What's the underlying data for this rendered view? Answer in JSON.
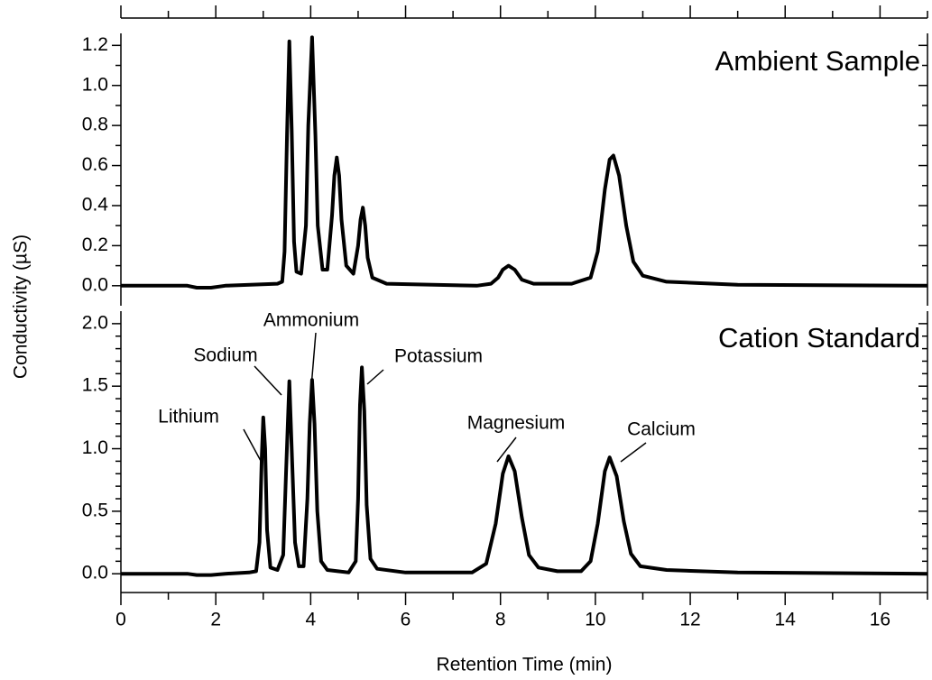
{
  "chart_data": [
    {
      "type": "line",
      "title": "Ambient Sample",
      "ylabel": "Conductivity (µS)",
      "color": "#000000",
      "xlim": [
        0,
        17
      ],
      "xticks": [
        0,
        2,
        4,
        6,
        8,
        10,
        12,
        14,
        16
      ],
      "xminorticks": [
        1,
        3,
        5,
        7,
        9,
        11,
        13,
        15,
        17
      ],
      "ylim": [
        -0.1,
        1.26
      ],
      "yticks": [
        {
          "value": 0,
          "label": "0.0"
        },
        0.2,
        0.4,
        0.6,
        0.8,
        {
          "value": 1,
          "label": "1.0"
        },
        1.2
      ],
      "yminorticks": [
        0.1,
        0.3,
        0.5,
        0.7,
        0.9,
        1.1
      ],
      "x": [
        0,
        1.4,
        1.6,
        1.9,
        2.2,
        3.3,
        3.4,
        3.45,
        3.5,
        3.55,
        3.6,
        3.65,
        3.7,
        3.8,
        3.9,
        3.95,
        4.03,
        4.1,
        4.15,
        4.25,
        4.35,
        4.45,
        4.5,
        4.55,
        4.6,
        4.65,
        4.75,
        4.9,
        5.0,
        5.05,
        5.1,
        5.15,
        5.2,
        5.3,
        5.6,
        7.5,
        7.8,
        7.95,
        8.05,
        8.17,
        8.3,
        8.45,
        8.7,
        9.5,
        9.9,
        10.05,
        10.2,
        10.3,
        10.38,
        10.5,
        10.65,
        10.8,
        11.0,
        11.5,
        13,
        17
      ],
      "values": [
        0,
        0,
        -0.01,
        -0.01,
        0,
        0.01,
        0.02,
        0.17,
        0.75,
        1.22,
        0.78,
        0.22,
        0.07,
        0.06,
        0.3,
        0.8,
        1.24,
        0.75,
        0.3,
        0.08,
        0.08,
        0.35,
        0.55,
        0.64,
        0.55,
        0.33,
        0.1,
        0.06,
        0.2,
        0.33,
        0.39,
        0.3,
        0.14,
        0.04,
        0.01,
        0,
        0.01,
        0.04,
        0.08,
        0.1,
        0.08,
        0.03,
        0.01,
        0.01,
        0.04,
        0.17,
        0.48,
        0.63,
        0.65,
        0.55,
        0.3,
        0.12,
        0.05,
        0.02,
        0.005,
        0
      ]
    },
    {
      "type": "line",
      "title": "Cation Standard",
      "xlabel": "Retention Time (min)",
      "color": "#000000",
      "xlim": [
        0,
        17
      ],
      "xticks": [
        0,
        2,
        4,
        6,
        8,
        10,
        12,
        14,
        16
      ],
      "xminorticks": [
        1,
        3,
        5,
        7,
        9,
        11,
        13,
        15,
        17
      ],
      "ylim": [
        -0.15,
        2.1
      ],
      "yticks": [
        {
          "value": 0,
          "label": "0.0"
        },
        0.5,
        {
          "value": 1,
          "label": "1.0"
        },
        1.5,
        {
          "value": 2,
          "label": "2.0"
        }
      ],
      "yminorticks": [
        0.1,
        0.2,
        0.3,
        0.4,
        0.6,
        0.7,
        0.8,
        0.9,
        1.1,
        1.2,
        1.3,
        1.4,
        1.6,
        1.7,
        1.8,
        1.9
      ],
      "annotations": [
        "Lithium",
        "Sodium",
        "Ammonium",
        "Potassium",
        "Magnesium",
        "Calcium"
      ],
      "x": [
        0,
        1.4,
        1.6,
        1.9,
        2.2,
        2.7,
        2.85,
        2.92,
        2.97,
        3.0,
        3.04,
        3.08,
        3.15,
        3.3,
        3.42,
        3.48,
        3.55,
        3.61,
        3.67,
        3.75,
        3.85,
        3.93,
        3.98,
        4.03,
        4.08,
        4.14,
        4.22,
        4.35,
        4.8,
        4.95,
        5.0,
        5.04,
        5.08,
        5.13,
        5.18,
        5.26,
        5.4,
        6,
        7.4,
        7.7,
        7.9,
        8.05,
        8.17,
        8.3,
        8.45,
        8.6,
        8.8,
        9.2,
        9.7,
        9.9,
        10.05,
        10.2,
        10.3,
        10.45,
        10.6,
        10.75,
        10.95,
        11.5,
        13,
        17
      ],
      "values": [
        0,
        0,
        -0.01,
        -0.01,
        0,
        0.01,
        0.02,
        0.25,
        0.95,
        1.25,
        1.0,
        0.35,
        0.05,
        0.03,
        0.15,
        0.8,
        1.54,
        0.9,
        0.25,
        0.06,
        0.06,
        0.6,
        1.2,
        1.55,
        1.2,
        0.5,
        0.1,
        0.03,
        0.01,
        0.1,
        0.6,
        1.35,
        1.65,
        1.3,
        0.55,
        0.12,
        0.04,
        0.01,
        0.01,
        0.08,
        0.4,
        0.8,
        0.94,
        0.82,
        0.45,
        0.15,
        0.05,
        0.02,
        0.02,
        0.1,
        0.4,
        0.82,
        0.93,
        0.78,
        0.42,
        0.16,
        0.06,
        0.03,
        0.01,
        0
      ]
    }
  ]
}
